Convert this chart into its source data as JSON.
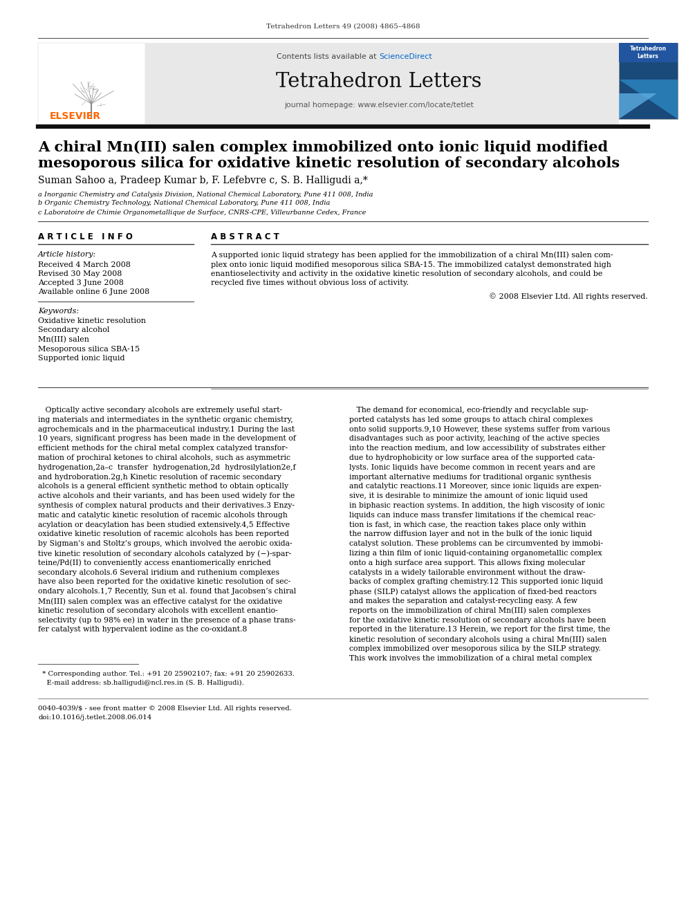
{
  "page_bg": "#ffffff",
  "top_citation": "Tetrahedron Letters 49 (2008) 4865–4868",
  "journal_name": "Tetrahedron Letters",
  "contents_text": "Contents lists available at ScienceDirect",
  "sciencedirect_color": "#0066cc",
  "homepage_text": "journal homepage: www.elsevier.com/locate/tetlet",
  "header_bg": "#e6e6e6",
  "elsevier_color": "#ff6600",
  "elsevier_text": "ELSEVIER",
  "article_title_line1": "A chiral Mn(III) salen complex immobilized onto ionic liquid modified",
  "article_title_line2": "mesoporous silica for oxidative kinetic resolution of secondary alcohols",
  "authors": "Suman Sahoo a, Pradeep Kumar b, F. Lefebvre c, S. B. Halligudi a,*",
  "affil_a": "a Inorganic Chemistry and Catalysis Division, National Chemical Laboratory, Pune 411 008, India",
  "affil_b": "b Organic Chemistry Technology, National Chemical Laboratory, Pune 411 008, India",
  "affil_c": "c Laboratoire de Chimie Organometallique de Surface, CNRS-CPE, Villeurbanne Cedex, France",
  "article_info_header": "A R T I C L E   I N F O",
  "abstract_header": "A B S T R A C T",
  "article_history_label": "Article history:",
  "received": "Received 4 March 2008",
  "revised": "Revised 30 May 2008",
  "accepted": "Accepted 3 June 2008",
  "available": "Available online 6 June 2008",
  "keywords_label": "Keywords:",
  "keywords": [
    "Oxidative kinetic resolution",
    "Secondary alcohol",
    "Mn(III) salen",
    "Mesoporous silica SBA-15",
    "Supported ionic liquid"
  ],
  "abstract_text_lines": [
    "A supported ionic liquid strategy has been applied for the immobilization of a chiral Mn(III) salen com-",
    "plex onto ionic liquid modified mesoporous silica SBA-15. The immobilized catalyst demonstrated high",
    "enantioselectivity and activity in the oxidative kinetic resolution of secondary alcohols, and could be",
    "recycled five times without obvious loss of activity."
  ],
  "copyright": "© 2008 Elsevier Ltd. All rights reserved.",
  "body_col1_lines": [
    "   Optically active secondary alcohols are extremely useful start-",
    "ing materials and intermediates in the synthetic organic chemistry,",
    "agrochemicals and in the pharmaceutical industry.1 During the last",
    "10 years, significant progress has been made in the development of",
    "efficient methods for the chiral metal complex catalyzed transfor-",
    "mation of prochiral ketones to chiral alcohols, such as asymmetric",
    "hydrogenation,2a–c  transfer  hydrogenation,2d  hydrosilylation2e,f",
    "and hydroboration.2g,h Kinetic resolution of racemic secondary",
    "alcohols is a general efficient synthetic method to obtain optically",
    "active alcohols and their variants, and has been used widely for the",
    "synthesis of complex natural products and their derivatives.3 Enzy-",
    "matic and catalytic kinetic resolution of racemic alcohols through",
    "acylation or deacylation has been studied extensively.4,5 Effective",
    "oxidative kinetic resolution of racemic alcohols has been reported",
    "by Sigman’s and Stoltz’s groups, which involved the aerobic oxida-",
    "tive kinetic resolution of secondary alcohols catalyzed by (−)-spar-",
    "teine/Pd(II) to conveniently access enantiomerically enriched",
    "secondary alcohols.6 Several iridium and ruthenium complexes",
    "have also been reported for the oxidative kinetic resolution of sec-",
    "ondary alcohols.1,7 Recently, Sun et al. found that Jacobsen’s chiral",
    "Mn(III) salen complex was an effective catalyst for the oxidative",
    "kinetic resolution of secondary alcohols with excellent enantio-",
    "selectivity (up to 98% ee) in water in the presence of a phase trans-",
    "fer catalyst with hypervalent iodine as the co-oxidant.8"
  ],
  "body_col2_lines": [
    "   The demand for economical, eco-friendly and recyclable sup-",
    "ported catalysts has led some groups to attach chiral complexes",
    "onto solid supports.9,10 However, these systems suffer from various",
    "disadvantages such as poor activity, leaching of the active species",
    "into the reaction medium, and low accessibility of substrates either",
    "due to hydrophobicity or low surface area of the supported cata-",
    "lysts. Ionic liquids have become common in recent years and are",
    "important alternative mediums for traditional organic synthesis",
    "and catalytic reactions.11 Moreover, since ionic liquids are expen-",
    "sive, it is desirable to minimize the amount of ionic liquid used",
    "in biphasic reaction systems. In addition, the high viscosity of ionic",
    "liquids can induce mass transfer limitations if the chemical reac-",
    "tion is fast, in which case, the reaction takes place only within",
    "the narrow diffusion layer and not in the bulk of the ionic liquid",
    "catalyst solution. These problems can be circumvented by immobi-",
    "lizing a thin film of ionic liquid-containing organometallic complex",
    "onto a high surface area support. This allows fixing molecular",
    "catalysts in a widely tailorable environment without the draw-",
    "backs of complex grafting chemistry.12 This supported ionic liquid",
    "phase (SILP) catalyst allows the application of fixed-bed reactors",
    "and makes the separation and catalyst-recycling easy. A few",
    "reports on the immobilization of chiral Mn(III) salen complexes",
    "for the oxidative kinetic resolution of secondary alcohols have been",
    "reported in the literature.13 Herein, we report for the first time, the",
    "kinetic resolution of secondary alcohols using a chiral Mn(III) salen",
    "complex immobilized over mesoporous silica by the SILP strategy.",
    "This work involves the immobilization of a chiral metal complex"
  ],
  "footnote_star": "  * Corresponding author. Tel.: +91 20 25902107; fax: +91 20 25902633.",
  "footnote_email": "    E-mail address: sb.halligudi@ncl.res.in (S. B. Halligudi).",
  "issn_line": "0040-4039/$ - see front matter © 2008 Elsevier Ltd. All rights reserved.",
  "doi_line": "doi:10.1016/j.tetlet.2008.06.014"
}
